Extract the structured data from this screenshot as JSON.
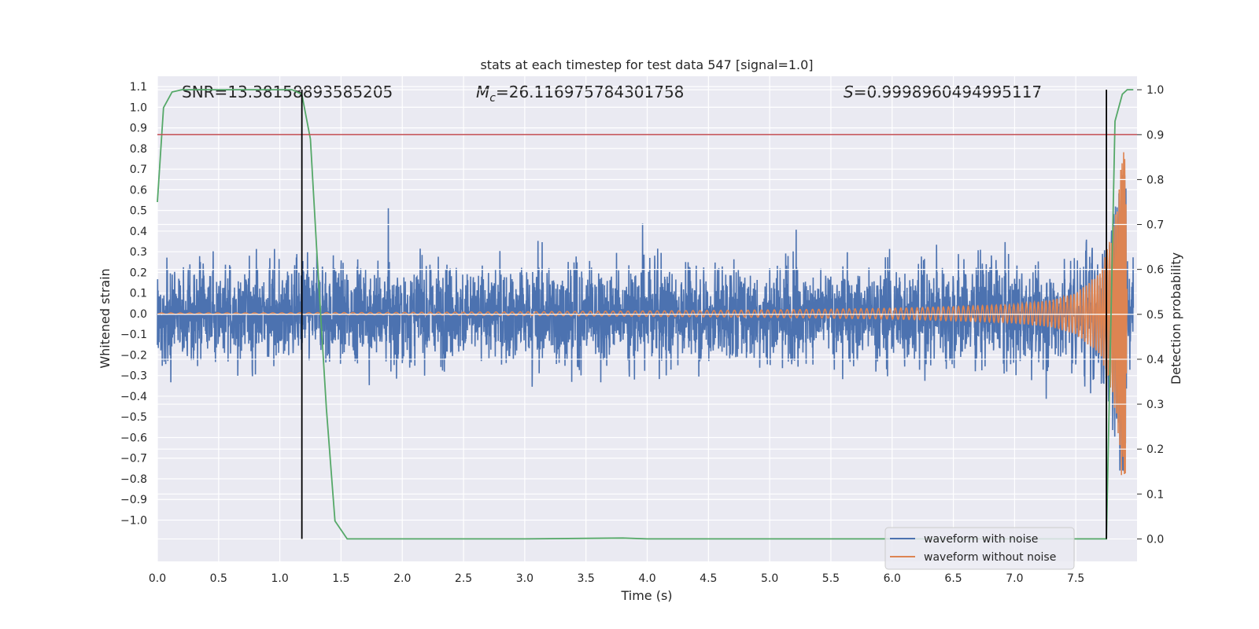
{
  "chart_data": {
    "type": "line",
    "title": "stats at each timestep for test data 547 [signal=1.0]",
    "xlabel": "Time (s)",
    "ylabel": "Whitened strain",
    "y2label": "Detection probability",
    "xlim": [
      0.0,
      8.0
    ],
    "ylim": [
      -1.2,
      1.15
    ],
    "y2lim": [
      -0.05,
      1.03
    ],
    "x_ticks": [
      "0.0",
      "0.5",
      "1.0",
      "1.5",
      "2.0",
      "2.5",
      "3.0",
      "3.5",
      "4.0",
      "4.5",
      "5.0",
      "5.5",
      "6.0",
      "6.5",
      "7.0",
      "7.5"
    ],
    "y_ticks": [
      "1.1",
      "1.0",
      "0.9",
      "0.8",
      "0.7",
      "0.6",
      "0.5",
      "0.4",
      "0.3",
      "0.2",
      "0.1",
      "0.0",
      "−0.1",
      "−0.2",
      "−0.3",
      "−0.4",
      "−0.5",
      "−0.6",
      "−0.7",
      "−0.8",
      "−0.9",
      "−1.0"
    ],
    "y2_ticks": [
      "1.0",
      "0.9",
      "0.8",
      "0.7",
      "0.6",
      "0.5",
      "0.4",
      "0.3",
      "0.2",
      "0.1",
      "0.0"
    ],
    "grid": true,
    "legend_position": "lower-right",
    "series": [
      {
        "name": "waveform with noise",
        "axis": "left",
        "color": "#4c72b0",
        "description_envelope": [
          0.0,
          0.35
        ],
        "note": "dense noisy strain signal spanning 0.0 to 7.97 s"
      },
      {
        "name": "waveform without noise",
        "axis": "left",
        "color": "#dd8452",
        "x": [
          0.0,
          1.0,
          2.0,
          3.0,
          4.0,
          5.0,
          6.0,
          6.5,
          7.0,
          7.3,
          7.5,
          7.7,
          7.8,
          7.85,
          7.88,
          7.9,
          7.92
        ],
        "amplitude": [
          0.003,
          0.004,
          0.006,
          0.009,
          0.013,
          0.018,
          0.026,
          0.034,
          0.045,
          0.065,
          0.1,
          0.2,
          0.4,
          0.6,
          0.85,
          1.05,
          0.0
        ]
      },
      {
        "name": "detection probability",
        "axis": "right",
        "color": "#55a868",
        "x": [
          0.0,
          0.05,
          0.12,
          0.2,
          0.3,
          0.5,
          0.8,
          1.0,
          1.1,
          1.18,
          1.25,
          1.3,
          1.38,
          1.45,
          1.55,
          2.0,
          3.0,
          3.8,
          4.0,
          5.0,
          6.0,
          7.0,
          7.5,
          7.6,
          7.75,
          7.82,
          7.88,
          7.92,
          7.97
        ],
        "values": [
          0.75,
          0.96,
          0.995,
          1.0,
          1.0,
          1.0,
          1.0,
          1.0,
          1.0,
          0.99,
          0.89,
          0.65,
          0.29,
          0.04,
          0.0,
          0.0,
          0.0,
          0.002,
          0.0,
          0.0,
          0.0,
          0.0,
          0.0,
          0.0,
          0.0,
          0.93,
          0.99,
          1.0,
          1.0
        ]
      }
    ],
    "threshold_line": {
      "value": 0.9,
      "axis": "right",
      "color": "#c44e52"
    },
    "vertical_lines": [
      {
        "x": 1.18,
        "color": "#000000"
      },
      {
        "x": 7.75,
        "color": "#000000"
      }
    ],
    "annotations": [
      {
        "prefix": "SNR=",
        "value": "13.38158893585205"
      },
      {
        "prefix": "M",
        "sub": "c",
        "suffix": "=",
        "value": "26.116975784301758"
      },
      {
        "prefix": "S",
        "suffix": "=",
        "value": "0.9998960494995117"
      }
    ],
    "legend": [
      "waveform with noise",
      "waveform without noise"
    ]
  }
}
